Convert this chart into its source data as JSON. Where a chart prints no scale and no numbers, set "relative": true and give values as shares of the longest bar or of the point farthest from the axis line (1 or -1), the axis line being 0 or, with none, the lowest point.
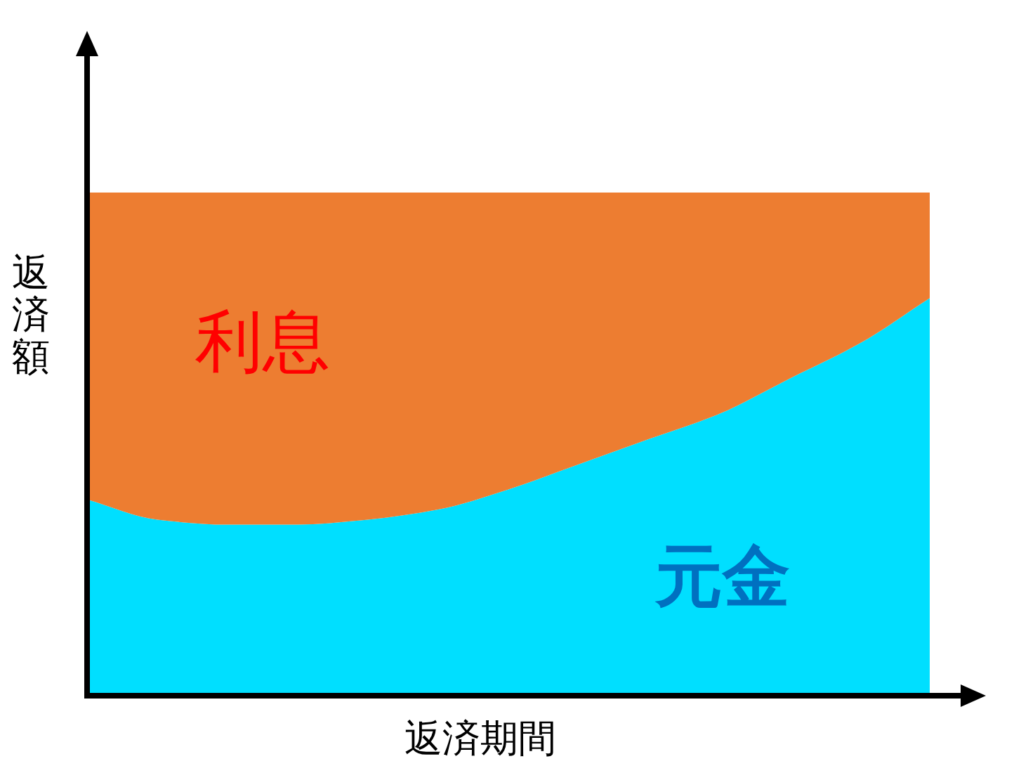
{
  "chart_data": {
    "type": "area",
    "stacked": true,
    "relative": true,
    "xlabel": "返済期間",
    "ylabel": "返済額",
    "categories": [
      null,
      null,
      null,
      null,
      null,
      null,
      null,
      null,
      null,
      null,
      null,
      null,
      null
    ],
    "series": [
      {
        "name": "元金",
        "color": "#00dfff",
        "values": [
          0.39,
          0.35,
          0.34,
          0.34,
          0.35,
          0.37,
          0.41,
          0.46,
          0.51,
          0.56,
          0.63,
          0.7,
          0.79
        ]
      },
      {
        "name": "利息",
        "color": "#ed7d31",
        "values": [
          0.61,
          0.65,
          0.66,
          0.66,
          0.65,
          0.63,
          0.59,
          0.54,
          0.49,
          0.44,
          0.37,
          0.3,
          0.21
        ]
      }
    ]
  }
}
